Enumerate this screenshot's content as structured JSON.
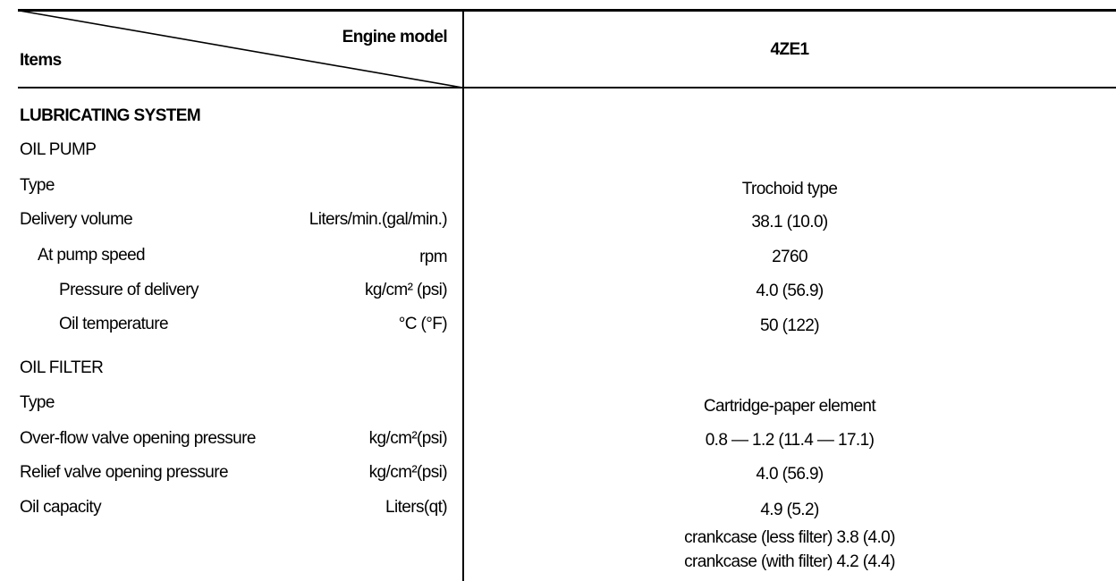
{
  "header": {
    "items_label": "Items",
    "engine_model_label": "Engine model",
    "model": "4ZE1"
  },
  "section": "LUBRICATING SYSTEM",
  "rows": [
    {
      "label": "OIL PUMP",
      "unit": "",
      "value": ""
    },
    {
      "label": "Type",
      "unit": "",
      "value": "Trochoid type"
    },
    {
      "label": "Delivery volume",
      "unit": "Liters/min.(gal/min.)",
      "value": "38.1 (10.0)"
    },
    {
      "label": "At pump speed",
      "unit": "rpm",
      "value": "2760"
    },
    {
      "label": "Pressure of delivery",
      "unit": "kg/cm² (psi)",
      "value": "4.0 (56.9)"
    },
    {
      "label": "Oil temperature",
      "unit": "°C (°F)",
      "value": "50 (122)"
    },
    {
      "label": "OIL FILTER",
      "unit": "",
      "value": ""
    },
    {
      "label": "Type",
      "unit": "",
      "value": "Cartridge-paper element"
    },
    {
      "label": "Over-flow valve opening pressure",
      "unit": "kg/cm²(psi)",
      "value": "0.8 — 1.2 (11.4 — 17.1)"
    },
    {
      "label": "Relief valve opening pressure",
      "unit": "kg/cm²(psi)",
      "value": "4.0 (56.9)"
    },
    {
      "label": "Oil capacity",
      "unit": "Liters(qt)",
      "value": "4.9 (5.2)"
    }
  ],
  "oil_capacity_notes": [
    "crankcase (less filter) 3.8 (4.0)",
    "crankcase (with filter) 4.2 (4.4)"
  ]
}
